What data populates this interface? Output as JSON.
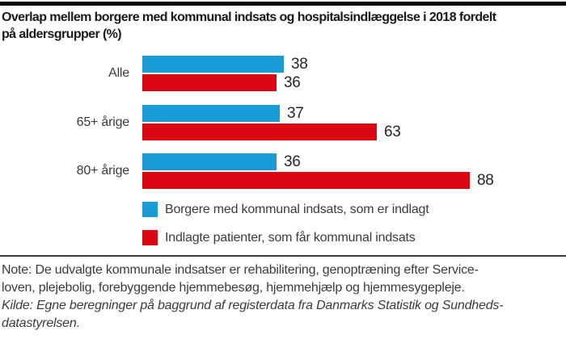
{
  "title": {
    "lines": [
      "Overlap mellem borgere med kommunal indsats og hospitalsindlæggelse i 2018 fordelt",
      "på aldersgrupper (%)"
    ]
  },
  "chart_data": {
    "type": "bar",
    "orientation": "horizontal",
    "title": "Overlap mellem borgere med kommunal indsats og hospitalsindlæggelse i 2018 fordelt på aldersgrupper (%)",
    "categories": [
      "Alle",
      "65+ årige",
      "80+ årige"
    ],
    "series": [
      {
        "name": "Borgere med kommunal indsats, som er indlagt",
        "color": "#189BD7",
        "values": [
          38,
          37,
          36
        ]
      },
      {
        "name": "Indlagte patienter, som får kommunal indsats",
        "color": "#D90812",
        "values": [
          36,
          63,
          88
        ]
      }
    ],
    "value_labels_shown": true,
    "axis_shown": false,
    "xlim": [
      0,
      100
    ],
    "legend_position": "bottom"
  },
  "note": {
    "lines": [
      "Note: De udvalgte kommunale indsatser er rehabilitering, genoptræning efter Service-",
      "loven, plejebolig, forebyggende hjemmebesøg, hjemmehjælp og hjemmesygepleje."
    ]
  },
  "kilde": {
    "lines": [
      "Kilde: Egne beregninger på baggrund af registerdata fra Danmarks Statistik og Sundheds-",
      "datastyrelsen."
    ]
  }
}
